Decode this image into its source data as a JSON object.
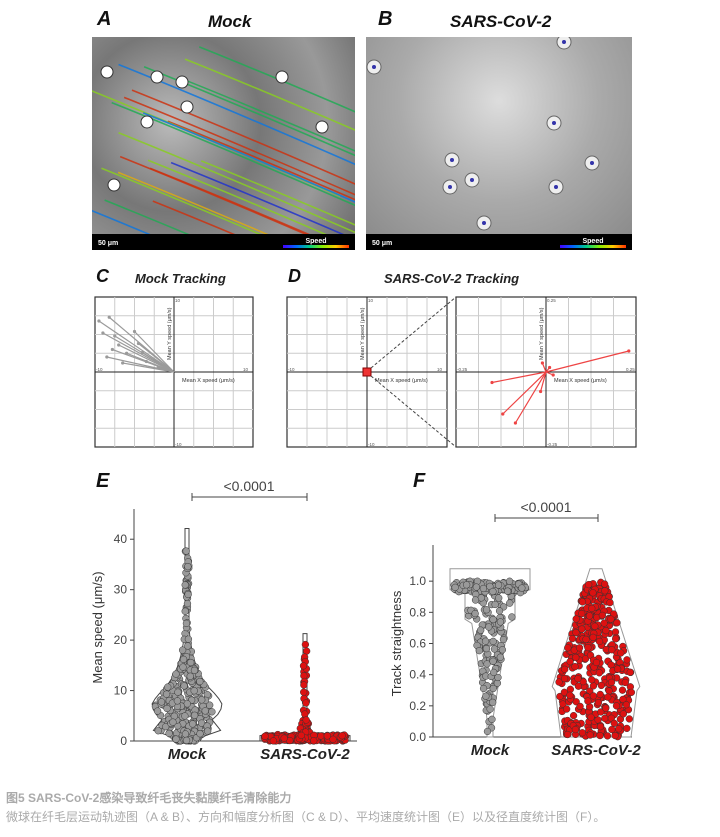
{
  "panels": {
    "A": {
      "label": "A",
      "title": "Mock",
      "scale_bar": "50 μm",
      "legend": "Speed"
    },
    "B": {
      "label": "B",
      "title": "SARS-CoV-2",
      "scale_bar": "50 μm",
      "legend": "Speed"
    },
    "C": {
      "label": "C",
      "title": "Mock Tracking"
    },
    "D": {
      "label": "D",
      "title": "SARS-CoV-2 Tracking"
    },
    "E": {
      "label": "E"
    },
    "F": {
      "label": "F"
    }
  },
  "colors": {
    "mock": "#9a9a9a",
    "sars": "#dd1111",
    "sars_arrow": "#ee4444"
  },
  "chart_data": [
    {
      "id": "C",
      "type": "line",
      "subtype": "vector-plot",
      "xlabel": "Mean X speed (μm/s)",
      "ylabel": "Mean Y speed (μm/s)",
      "xlim": [
        -10,
        10
      ],
      "ylim": [
        -10,
        10
      ],
      "grid": true,
      "x_ticks": [
        "-10",
        "-5",
        "5",
        "10"
      ],
      "y_ticks": [
        "10",
        "5",
        "-5",
        "-10"
      ],
      "vectors": [
        [
          -9.5,
          6.8
        ],
        [
          -8.2,
          7.3
        ],
        [
          -5,
          5.4
        ],
        [
          -9,
          5.2
        ],
        [
          -7.5,
          4.8
        ],
        [
          -7,
          3.6
        ],
        [
          -8.5,
          2
        ],
        [
          -6,
          2.5
        ],
        [
          -4.5,
          3.8
        ],
        [
          -3.5,
          1.4
        ],
        [
          -2,
          0.6
        ],
        [
          -6.5,
          1.2
        ],
        [
          -7.8,
          3
        ],
        [
          -4,
          2.6
        ]
      ]
    },
    {
      "id": "D",
      "type": "line",
      "subtype": "vector-plot",
      "xlabel": "Mean X speed (μm/s)",
      "ylabel": "Mean Y speed (μm/s)",
      "xlim": [
        -10,
        10
      ],
      "ylim": [
        -10,
        10
      ],
      "grid": true,
      "x_ticks": [
        "-10",
        "-5",
        "5",
        "10"
      ],
      "y_ticks": [
        "10",
        "5",
        "-5",
        "-10"
      ],
      "inset": {
        "xlim": [
          -0.25,
          0.25
        ],
        "ylim": [
          -0.25,
          0.25
        ],
        "x_ticks": [
          "-0.25",
          "0.25"
        ],
        "y_ticks": [
          "0.25",
          "-0.25"
        ],
        "vectors": [
          [
            0.23,
            0.07
          ],
          [
            -0.15,
            -0.035
          ],
          [
            -0.12,
            -0.14
          ],
          [
            -0.085,
            -0.17
          ],
          [
            -0.015,
            -0.065
          ],
          [
            -0.01,
            0.03
          ],
          [
            0.02,
            -0.01
          ],
          [
            0.01,
            0.015
          ]
        ]
      }
    },
    {
      "id": "E",
      "type": "scatter",
      "subtype": "violin",
      "categories": [
        "Mock",
        "SARS-CoV-2"
      ],
      "ylabel": "Mean speed (μm/s)",
      "ylim": [
        0,
        45
      ],
      "y_ticks": [
        "0",
        "10",
        "20",
        "30",
        "40"
      ],
      "series": [
        {
          "max": 39,
          "median": 7
        },
        {
          "max": 19.7,
          "median": 0.5
        }
      ],
      "annotation": "<0.0001"
    },
    {
      "id": "F",
      "type": "scatter",
      "subtype": "violin",
      "categories": [
        "Mock",
        "SARS-CoV-2"
      ],
      "ylabel": "Track straightness",
      "ylim": [
        0,
        1.2
      ],
      "y_ticks": [
        "0.0",
        "0.2",
        "0.4",
        "0.6",
        "0.8",
        "1.0"
      ],
      "series": [
        {
          "max": 1.0,
          "median": 0.9
        },
        {
          "max": 1.0,
          "median": 0.45
        }
      ],
      "annotation": "<0.0001"
    }
  ],
  "caption": {
    "title": "图5 SARS-CoV-2感染导致纤毛丧失黏膜纤毛清除能力",
    "text": "微球在纤毛层运动轨迹图（A & B）、方向和幅度分析图（C & D）、平均速度统计图（E）以及径直度统计图（F）。"
  }
}
